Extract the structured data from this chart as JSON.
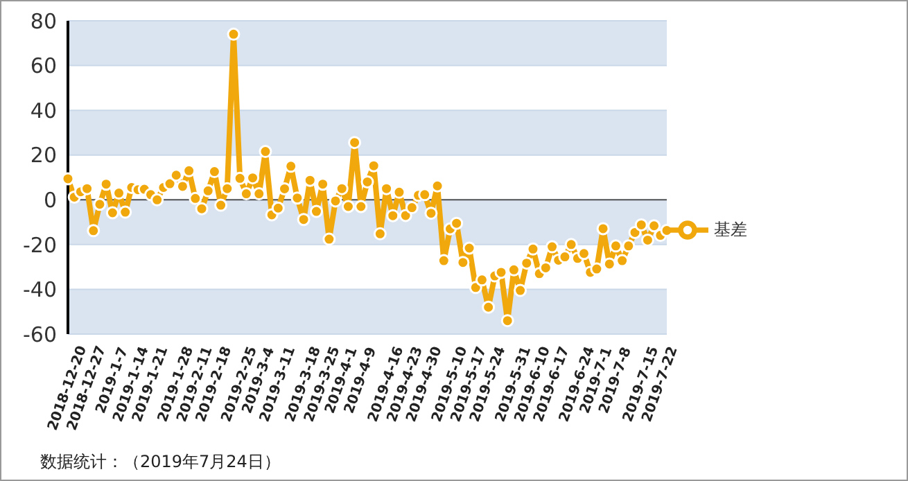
{
  "chart_data": {
    "type": "line",
    "categories": [
      "2018-12-20",
      null,
      null,
      "2018-12-27",
      null,
      null,
      null,
      "2019-1-7",
      null,
      null,
      "2019-1-14",
      null,
      null,
      "2019-1-21",
      null,
      null,
      null,
      "2019-1-28",
      null,
      null,
      "2019-2-11",
      null,
      null,
      "2019-2-18",
      null,
      null,
      null,
      "2019-2-25",
      null,
      null,
      "2019-3-4",
      null,
      null,
      "2019-3-11",
      null,
      null,
      null,
      "2019-3-18",
      null,
      null,
      "2019-3-25",
      null,
      null,
      "2019-4-1",
      null,
      null,
      "2019-4-9",
      null,
      null,
      null,
      "2019-4-16",
      null,
      null,
      "2019-4-23",
      null,
      null,
      "2019-4-30",
      null,
      null,
      null,
      "2019-5-10",
      null,
      null,
      "2019-5-17",
      null,
      null,
      "2019-5-24",
      null,
      null,
      null,
      "2019-5-31",
      null,
      null,
      "2019-6-10",
      null,
      null,
      "2019-6-17",
      null,
      null,
      null,
      "2019-6-24",
      null,
      null,
      "2019-7-1",
      null,
      null,
      "2019-7-8",
      null,
      null,
      null,
      "2019-7-15",
      null,
      null,
      "2019-7-22",
      null
    ],
    "series": [
      {
        "name": "基差",
        "color": "#f0a80c",
        "values": [
          9.4,
          1.2,
          3.6,
          5,
          -13.8,
          -2,
          7,
          -5.8,
          3,
          -5.5,
          5.5,
          4.5,
          4.7,
          2.3,
          0,
          5.5,
          7.2,
          11,
          6,
          13,
          0.6,
          -4,
          4,
          12.6,
          -2.4,
          5,
          74,
          9.6,
          2.7,
          9.8,
          2.7,
          21.6,
          -6.7,
          -3.7,
          4.9,
          15,
          0.8,
          -8.8,
          8.7,
          -5.2,
          7,
          -17.6,
          -0.5,
          5,
          -3,
          25.6,
          -3,
          8,
          15.2,
          -15.2,
          5,
          -7.1,
          3.4,
          -7,
          -3.5,
          2,
          2.3,
          -6,
          6.2,
          -27.2,
          -13,
          -10.5,
          -28,
          -21.6,
          -39.2,
          -35.8,
          -48,
          -34,
          -32.4,
          -54,
          -31.3,
          -40.5,
          -28.3,
          -22,
          -33,
          -30.4,
          -21,
          -27,
          -25.5,
          -20,
          -26.2,
          -24,
          -32.4,
          -30.9,
          -12.9,
          -28.7,
          -20.6,
          -27.2,
          -20.6,
          -14.6,
          -11.2,
          -18,
          -11.6,
          -15.9,
          -13.7
        ]
      }
    ],
    "ylim": [
      -60,
      80
    ],
    "yticks": [
      -60,
      -40,
      -20,
      0,
      20,
      40,
      60,
      80
    ],
    "grid": "y",
    "legend": "right",
    "marker": "circle",
    "ref_lines": [
      {
        "axis": "y",
        "value": 0,
        "color": "#555555"
      }
    ],
    "annotations": [
      "数据统计：（2019年7月24日）"
    ]
  }
}
